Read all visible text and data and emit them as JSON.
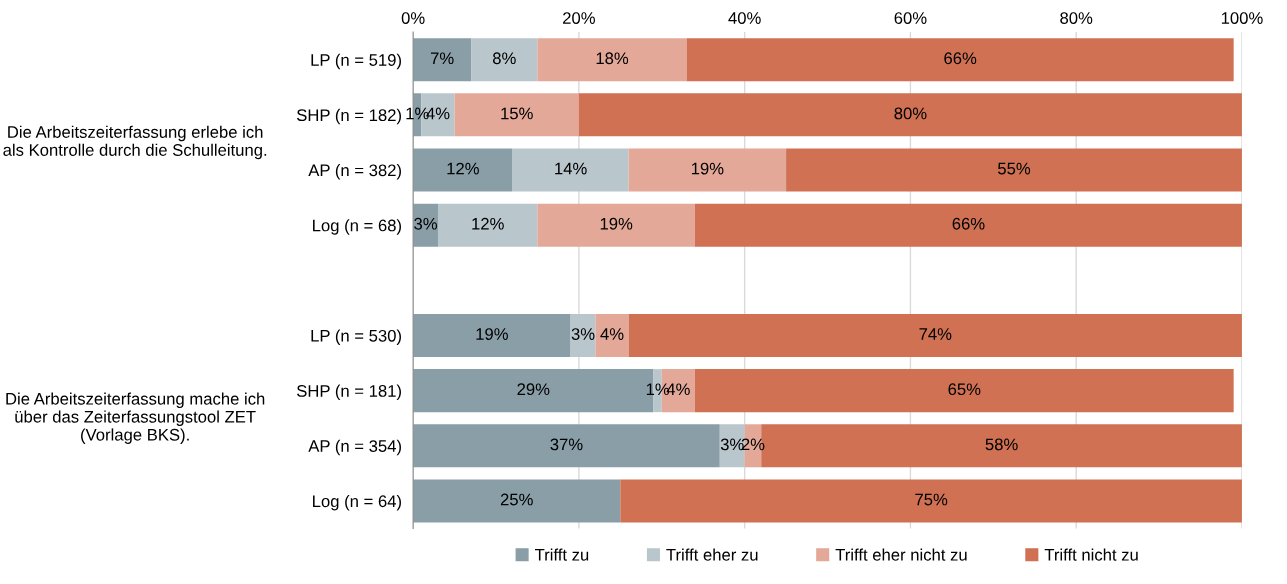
{
  "chart_data": {
    "type": "bar",
    "orientation": "horizontal",
    "stacked": true,
    "categories": [
      "LP (n = 519)",
      "SHP (n = 182)",
      "AP (n = 382)",
      "Log (n = 68)",
      null,
      "LP (n = 530)",
      "SHP (n = 181)",
      "AP (n = 354)",
      "Log (n = 64)"
    ],
    "series": [
      {
        "name": "Trifft zu",
        "color": "#8a9ea8",
        "values": [
          7,
          1,
          12,
          3,
          null,
          19,
          29,
          37,
          25
        ],
        "value_labels": [
          "7%",
          "1%",
          "12%",
          "3%",
          null,
          "19%",
          "29%",
          "37%",
          "25%"
        ]
      },
      {
        "name": "Trifft eher zu",
        "color": "#b9c6cc",
        "values": [
          8,
          4,
          14,
          12,
          null,
          3,
          1,
          3,
          null
        ],
        "value_labels": [
          "8%",
          "4%",
          "14%",
          "12%",
          null,
          "3%",
          "1%",
          "3%",
          null
        ]
      },
      {
        "name": "Trifft eher nicht zu",
        "color": "#e3a898",
        "values": [
          18,
          15,
          19,
          19,
          null,
          4,
          4,
          2,
          null
        ],
        "value_labels": [
          "18%",
          "15%",
          "19%",
          "19%",
          null,
          "4%",
          "4%",
          "2%",
          null
        ]
      },
      {
        "name": "Trifft nicht zu",
        "color": "#cf7152",
        "values": [
          66,
          80,
          55,
          66,
          null,
          74,
          65,
          58,
          75
        ],
        "value_labels": [
          "66%",
          "80%",
          "55%",
          "66%",
          null,
          "74%",
          "65%",
          "58%",
          "75%"
        ]
      }
    ],
    "xlim": [
      0,
      100
    ],
    "xticks": [
      {
        "value": 0,
        "label": "0%"
      },
      {
        "value": 20,
        "label": "20%"
      },
      {
        "value": 40,
        "label": "40%"
      },
      {
        "value": 60,
        "label": "60%"
      },
      {
        "value": 80,
        "label": "80%"
      },
      {
        "value": 100,
        "label": "100%"
      }
    ],
    "grid": "x",
    "legend": "bottom",
    "annotations": [
      "Die Arbeitszeiterfassung erlebe ich als Kontrolle durch die Schulleitung.",
      "Die Arbeitszeiterfassung mache ich über das Zeiterfassungstool ZET (Vorlage BKS)."
    ]
  }
}
